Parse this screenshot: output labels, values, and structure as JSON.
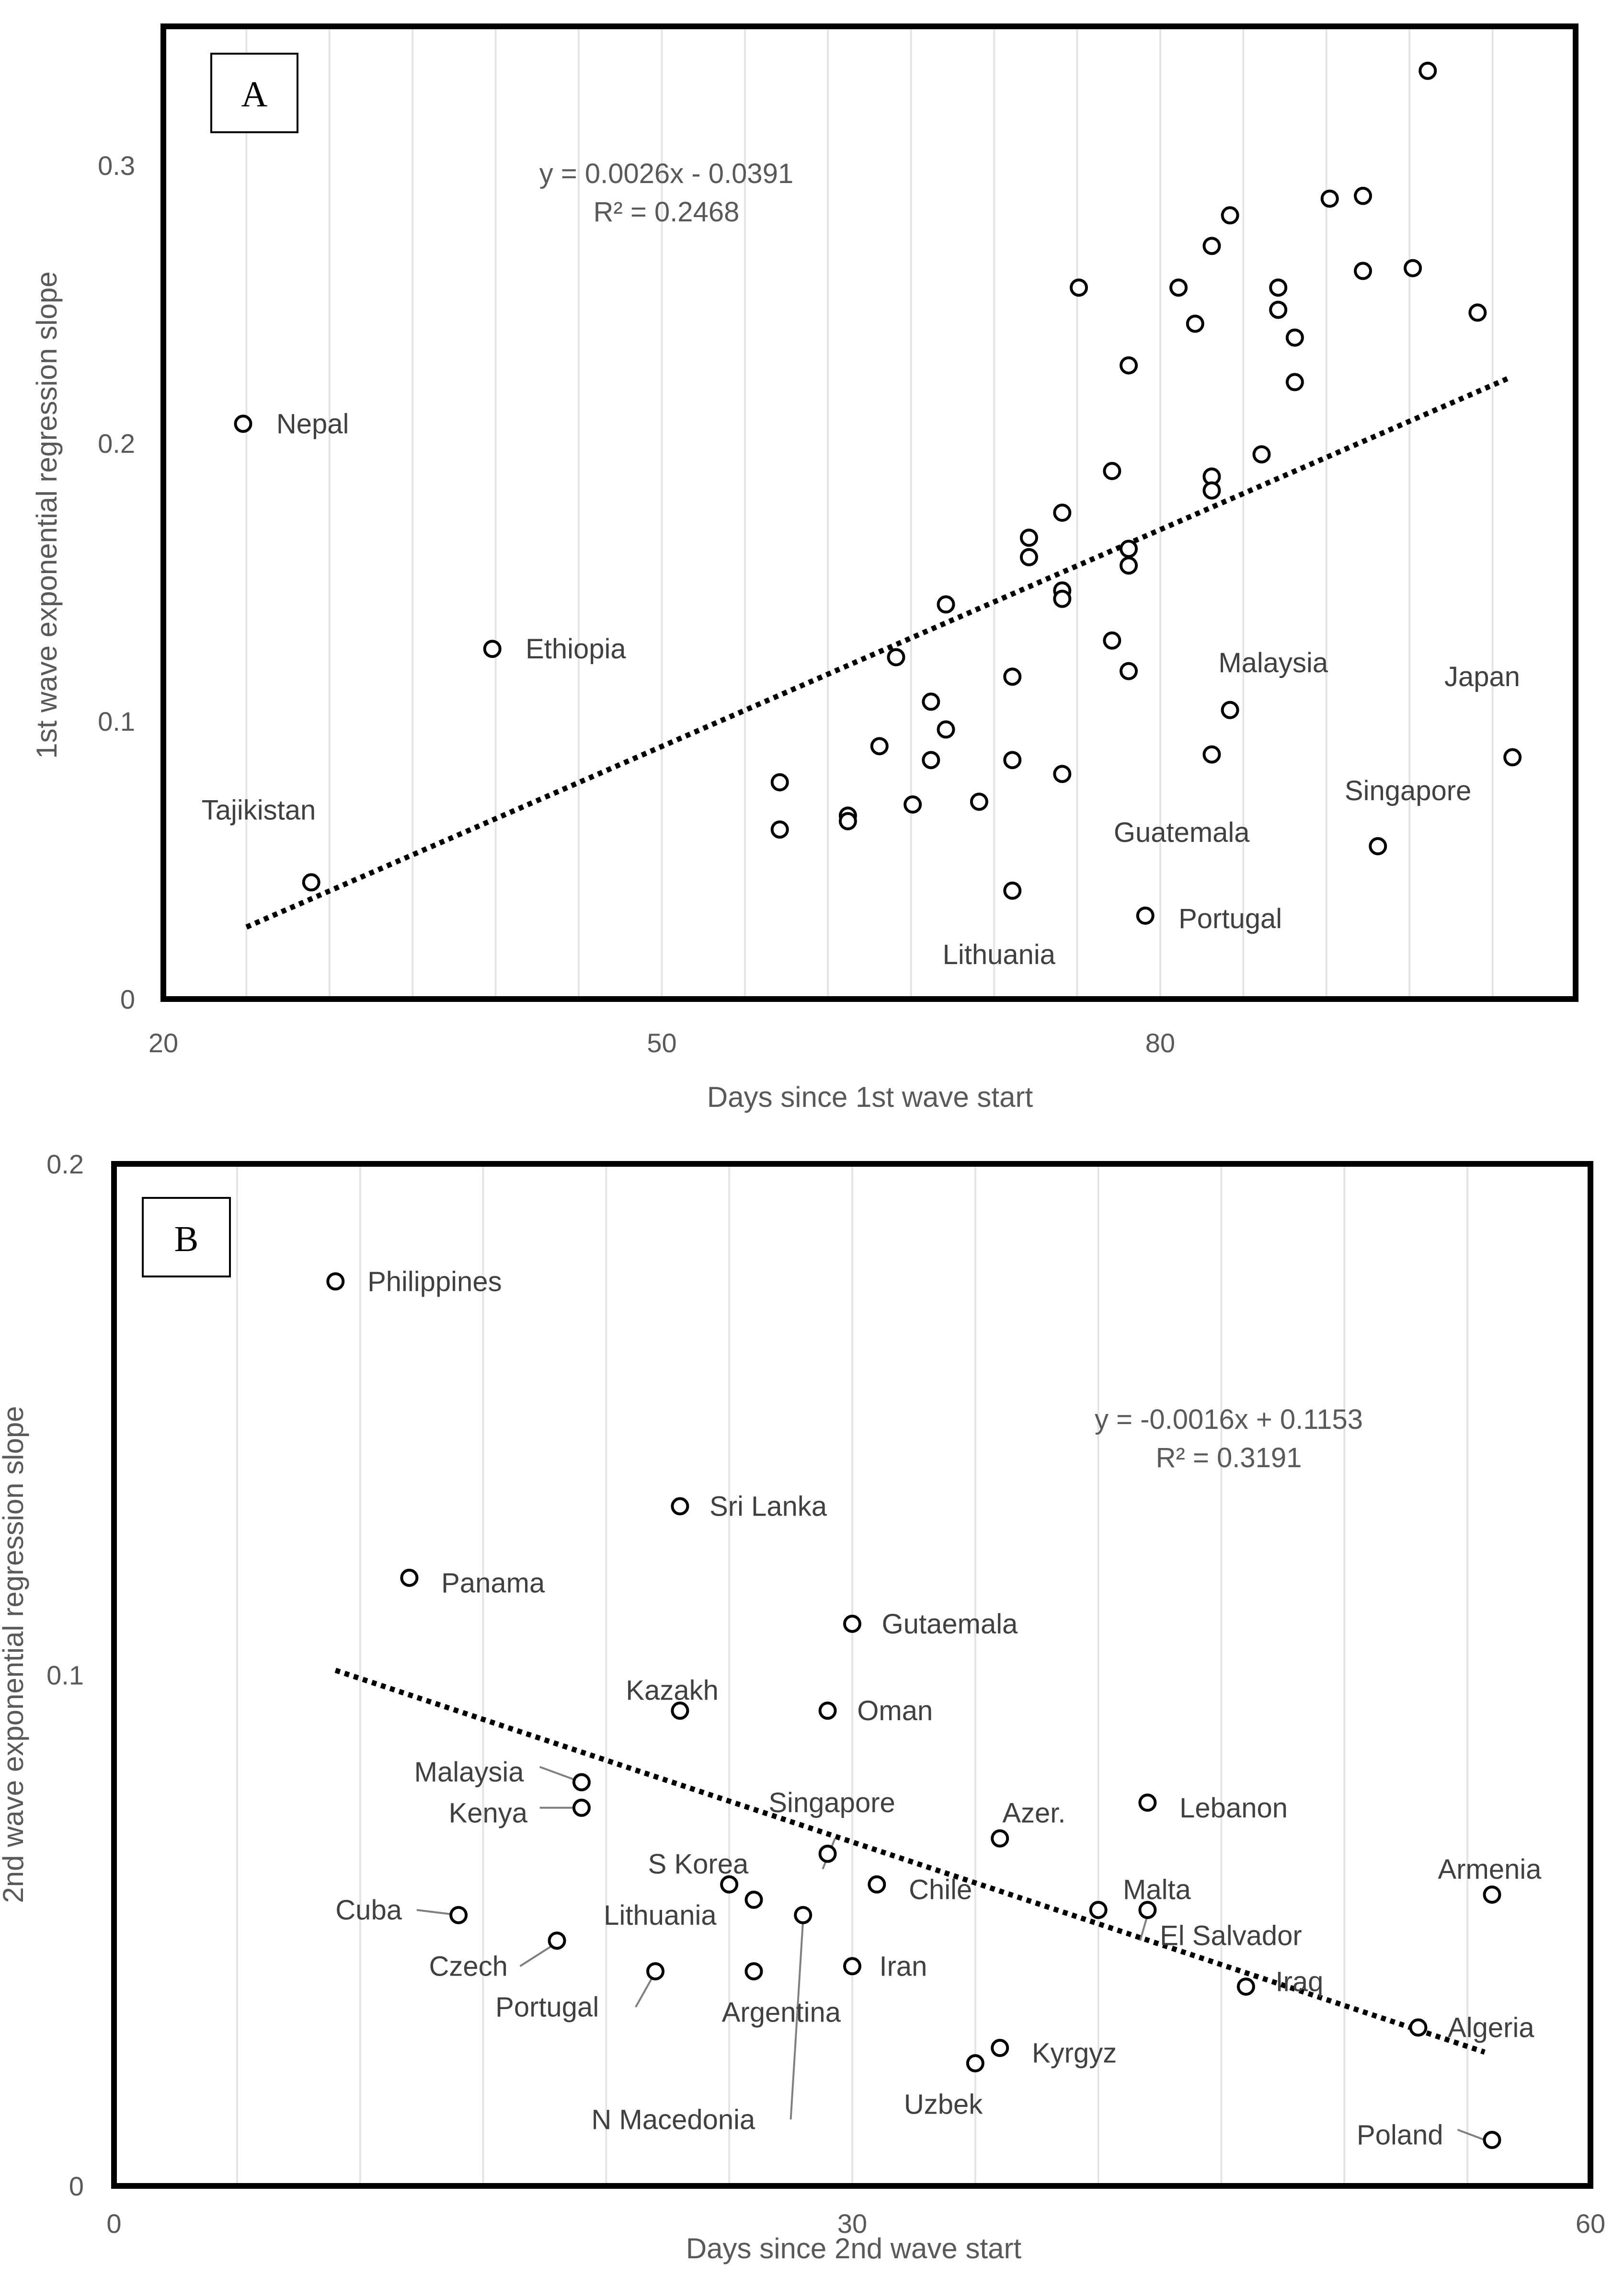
{
  "chart_data": [
    {
      "type": "scatter",
      "panel_label": "A",
      "title": "",
      "xlabel": "Days since 1st wave start",
      "ylabel": "1st wave exponential regression slope",
      "xlim": [
        20,
        105
      ],
      "ylim": [
        0,
        0.35
      ],
      "xticks": [
        "20",
        "50",
        "80"
      ],
      "yticks": [
        "0",
        "0.1",
        "0.2",
        "0.3"
      ],
      "trendline": {
        "slope": 0.0026,
        "intercept": -0.0391,
        "x_range": [
          25,
          101
        ],
        "equation": "y = 0.0026x - 0.0391",
        "r2": "R² = 0.2468"
      },
      "points": [
        {
          "x": 24.8,
          "y": 0.207
        },
        {
          "x": 28.9,
          "y": 0.042
        },
        {
          "x": 39.8,
          "y": 0.126
        },
        {
          "x": 57.1,
          "y": 0.078
        },
        {
          "x": 57.1,
          "y": 0.061
        },
        {
          "x": 61.2,
          "y": 0.066
        },
        {
          "x": 61.2,
          "y": 0.064
        },
        {
          "x": 63.1,
          "y": 0.091
        },
        {
          "x": 64.1,
          "y": 0.123
        },
        {
          "x": 65.1,
          "y": 0.07
        },
        {
          "x": 66.2,
          "y": 0.107
        },
        {
          "x": 66.2,
          "y": 0.086
        },
        {
          "x": 67.1,
          "y": 0.142
        },
        {
          "x": 67.1,
          "y": 0.097
        },
        {
          "x": 69.1,
          "y": 0.071
        },
        {
          "x": 71.1,
          "y": 0.116
        },
        {
          "x": 71.1,
          "y": 0.086
        },
        {
          "x": 71.1,
          "y": 0.039
        },
        {
          "x": 72.1,
          "y": 0.166
        },
        {
          "x": 72.1,
          "y": 0.159
        },
        {
          "x": 74.1,
          "y": 0.175
        },
        {
          "x": 74.1,
          "y": 0.147
        },
        {
          "x": 74.1,
          "y": 0.144
        },
        {
          "x": 74.1,
          "y": 0.081
        },
        {
          "x": 75.1,
          "y": 0.256
        },
        {
          "x": 77.1,
          "y": 0.19
        },
        {
          "x": 77.1,
          "y": 0.129
        },
        {
          "x": 78.1,
          "y": 0.228
        },
        {
          "x": 78.1,
          "y": 0.162
        },
        {
          "x": 78.1,
          "y": 0.156
        },
        {
          "x": 78.1,
          "y": 0.118
        },
        {
          "x": 79.1,
          "y": 0.03
        },
        {
          "x": 81.1,
          "y": 0.256
        },
        {
          "x": 82.1,
          "y": 0.243
        },
        {
          "x": 83.1,
          "y": 0.271
        },
        {
          "x": 83.1,
          "y": 0.188
        },
        {
          "x": 83.1,
          "y": 0.183
        },
        {
          "x": 83.1,
          "y": 0.088
        },
        {
          "x": 84.2,
          "y": 0.282
        },
        {
          "x": 84.2,
          "y": 0.104
        },
        {
          "x": 86.1,
          "y": 0.196
        },
        {
          "x": 87.1,
          "y": 0.256
        },
        {
          "x": 87.1,
          "y": 0.248
        },
        {
          "x": 88.1,
          "y": 0.238
        },
        {
          "x": 88.1,
          "y": 0.222
        },
        {
          "x": 90.2,
          "y": 0.288
        },
        {
          "x": 92.2,
          "y": 0.289
        },
        {
          "x": 92.2,
          "y": 0.262
        },
        {
          "x": 93.1,
          "y": 0.055
        },
        {
          "x": 95.2,
          "y": 0.263
        },
        {
          "x": 96.1,
          "y": 0.334
        },
        {
          "x": 99.1,
          "y": 0.247
        },
        {
          "x": 101.2,
          "y": 0.087
        }
      ],
      "labels": [
        {
          "text": "Nepal",
          "x": 26.8,
          "y": 0.207,
          "anchor": "start"
        },
        {
          "text": "Ethiopia",
          "x": 41.8,
          "y": 0.126,
          "anchor": "start"
        },
        {
          "text": "Tajikistan",
          "x": 22.3,
          "y": 0.068,
          "anchor": "start"
        },
        {
          "text": "Malaysia",
          "x": 83.5,
          "y": 0.121,
          "anchor": "start"
        },
        {
          "text": "Japan",
          "x": 97.1,
          "y": 0.116,
          "anchor": "start"
        },
        {
          "text": "Singapore",
          "x": 91.1,
          "y": 0.075,
          "anchor": "start"
        },
        {
          "text": "Guatemala",
          "x": 77.2,
          "y": 0.06,
          "anchor": "start"
        },
        {
          "text": "Portugal",
          "x": 81.1,
          "y": 0.029,
          "anchor": "start"
        },
        {
          "text": "Lithuania",
          "x": 66.9,
          "y": 0.016,
          "anchor": "start"
        }
      ]
    },
    {
      "type": "scatter",
      "panel_label": "B",
      "title": "",
      "xlabel": "Days since 2nd wave start",
      "ylabel": "2nd wave exponential regression slope",
      "xlim": [
        0,
        60
      ],
      "ylim": [
        0,
        0.2
      ],
      "xticks": [
        "0",
        "30",
        "60"
      ],
      "yticks": [
        "0",
        "0.1",
        "0.2"
      ],
      "trendline": {
        "slope": -0.0016,
        "intercept": 0.1153,
        "x_range": [
          9,
          55.7
        ],
        "equation": "y = -0.0016x + 0.1153",
        "r2": "R² = 0.3191"
      },
      "points": [
        {
          "x": 9.0,
          "y": 0.177
        },
        {
          "x": 12.0,
          "y": 0.119
        },
        {
          "x": 14.0,
          "y": 0.053
        },
        {
          "x": 18.0,
          "y": 0.048
        },
        {
          "x": 19.0,
          "y": 0.079
        },
        {
          "x": 19.0,
          "y": 0.074
        },
        {
          "x": 22.0,
          "y": 0.042
        },
        {
          "x": 23.0,
          "y": 0.133
        },
        {
          "x": 23.0,
          "y": 0.093
        },
        {
          "x": 25.0,
          "y": 0.059
        },
        {
          "x": 26.0,
          "y": 0.056
        },
        {
          "x": 26.0,
          "y": 0.042
        },
        {
          "x": 28.0,
          "y": 0.053
        },
        {
          "x": 29.0,
          "y": 0.093
        },
        {
          "x": 29.0,
          "y": 0.065
        },
        {
          "x": 30.0,
          "y": 0.11
        },
        {
          "x": 30.0,
          "y": 0.043
        },
        {
          "x": 31.0,
          "y": 0.059
        },
        {
          "x": 35.0,
          "y": 0.024
        },
        {
          "x": 36.0,
          "y": 0.068
        },
        {
          "x": 36.0,
          "y": 0.027
        },
        {
          "x": 40.0,
          "y": 0.054
        },
        {
          "x": 42.0,
          "y": 0.075
        },
        {
          "x": 42.0,
          "y": 0.054
        },
        {
          "x": 46.0,
          "y": 0.039
        },
        {
          "x": 53.0,
          "y": 0.031
        },
        {
          "x": 56.0,
          "y": 0.057
        },
        {
          "x": 56.0,
          "y": 0.009
        }
      ],
      "labels": [
        {
          "text": "Philippines",
          "x": 10.3,
          "y": 0.177,
          "anchor": "start"
        },
        {
          "text": "Sri Lanka",
          "x": 24.2,
          "y": 0.133,
          "anchor": "start"
        },
        {
          "text": "Panama",
          "x": 13.3,
          "y": 0.118,
          "anchor": "start"
        },
        {
          "text": "Gutaemala",
          "x": 31.2,
          "y": 0.11,
          "anchor": "start"
        },
        {
          "text": "Kazakh",
          "x": 20.8,
          "y": 0.097,
          "anchor": "start"
        },
        {
          "text": "Oman",
          "x": 30.2,
          "y": 0.093,
          "anchor": "start"
        },
        {
          "text": "Malaysia",
          "x": 12.2,
          "y": 0.081,
          "anchor": "start"
        },
        {
          "text": "Kenya",
          "x": 13.6,
          "y": 0.073,
          "anchor": "start"
        },
        {
          "text": "Singapore",
          "x": 26.6,
          "y": 0.075,
          "anchor": "start"
        },
        {
          "text": "Azer.",
          "x": 36.1,
          "y": 0.073,
          "anchor": "start"
        },
        {
          "text": "Lebanon",
          "x": 43.3,
          "y": 0.074,
          "anchor": "start"
        },
        {
          "text": "S Korea",
          "x": 21.7,
          "y": 0.063,
          "anchor": "start"
        },
        {
          "text": "Armenia",
          "x": 53.8,
          "y": 0.062,
          "anchor": "start"
        },
        {
          "text": "Chile",
          "x": 32.3,
          "y": 0.058,
          "anchor": "start"
        },
        {
          "text": "Malta",
          "x": 41.0,
          "y": 0.058,
          "anchor": "start"
        },
        {
          "text": "Cuba",
          "x": 9.0,
          "y": 0.054,
          "anchor": "start"
        },
        {
          "text": "Lithuania",
          "x": 19.9,
          "y": 0.053,
          "anchor": "start"
        },
        {
          "text": "El Salvador",
          "x": 42.5,
          "y": 0.049,
          "anchor": "start"
        },
        {
          "text": "Czech",
          "x": 12.8,
          "y": 0.043,
          "anchor": "start"
        },
        {
          "text": "Iran",
          "x": 31.1,
          "y": 0.043,
          "anchor": "start"
        },
        {
          "text": "Iraq",
          "x": 47.2,
          "y": 0.04,
          "anchor": "start"
        },
        {
          "text": "Portugal",
          "x": 15.5,
          "y": 0.035,
          "anchor": "start"
        },
        {
          "text": "Argentina",
          "x": 24.7,
          "y": 0.034,
          "anchor": "start"
        },
        {
          "text": "Algeria",
          "x": 54.2,
          "y": 0.031,
          "anchor": "start"
        },
        {
          "text": "Kyrgyz",
          "x": 37.3,
          "y": 0.026,
          "anchor": "start"
        },
        {
          "text": "Uzbek",
          "x": 32.1,
          "y": 0.016,
          "anchor": "start"
        },
        {
          "text": "N Macedonia",
          "x": 19.4,
          "y": 0.013,
          "anchor": "start"
        },
        {
          "text": "Poland",
          "x": 50.5,
          "y": 0.01,
          "anchor": "start"
        }
      ],
      "leaders": [
        {
          "x1": 17.3,
          "y1": 0.082,
          "x2": 19.0,
          "y2": 0.079
        },
        {
          "x1": 17.3,
          "y1": 0.074,
          "x2": 18.8,
          "y2": 0.074
        },
        {
          "x1": 12.3,
          "y1": 0.054,
          "x2": 14.0,
          "y2": 0.053
        },
        {
          "x1": 16.5,
          "y1": 0.043,
          "x2": 17.8,
          "y2": 0.047
        },
        {
          "x1": 21.2,
          "y1": 0.035,
          "x2": 21.9,
          "y2": 0.041
        },
        {
          "x1": 28.8,
          "y1": 0.062,
          "x2": 29.3,
          "y2": 0.068
        },
        {
          "x1": 27.5,
          "y1": 0.013,
          "x2": 28.0,
          "y2": 0.052
        },
        {
          "x1": 41.7,
          "y1": 0.048,
          "x2": 42.0,
          "y2": 0.053
        },
        {
          "x1": 54.6,
          "y1": 0.011,
          "x2": 55.7,
          "y2": 0.009
        }
      ]
    }
  ]
}
